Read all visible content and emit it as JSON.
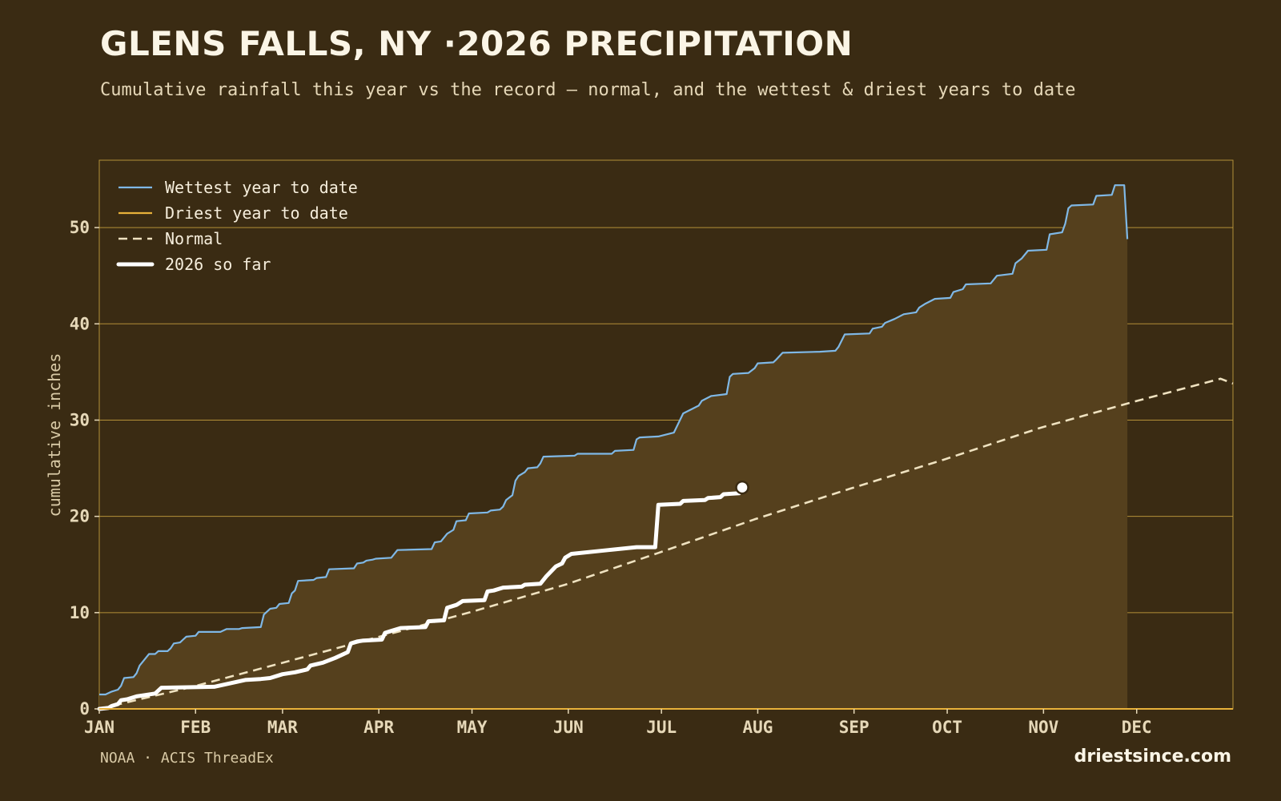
{
  "header": {
    "title": "GLENS FALLS, NY ·2026 PRECIPITATION",
    "subtitle": "Cumulative rainfall this year vs the record — normal, and the wettest & driest years to date"
  },
  "footer": {
    "source": "NOAA · ACIS ThreadEx",
    "brand": "driestsince.com"
  },
  "colors": {
    "background": "#3a2b13",
    "band_fill": "#55401d",
    "grid": "#c9a23f",
    "wettest": "#7fb8e6",
    "driest": "#e8b13a",
    "normal": "#efe2c0",
    "current": "#ffffff"
  },
  "chart_data": {
    "type": "line",
    "title": "GLENS FALLS, NY ·2026 PRECIPITATION",
    "subtitle": "Cumulative rainfall this year vs the record — normal, and the wettest & driest years to date",
    "xlabel": "",
    "ylabel": "cumulative inches",
    "x_unit": "day of year",
    "xlim": [
      1,
      366
    ],
    "ylim": [
      0,
      57
    ],
    "yticks": [
      0,
      10,
      20,
      30,
      40,
      50
    ],
    "month_ticks": [
      {
        "label": "JAN",
        "day": 1
      },
      {
        "label": "FEB",
        "day": 32
      },
      {
        "label": "MAR",
        "day": 60
      },
      {
        "label": "APR",
        "day": 91
      },
      {
        "label": "MAY",
        "day": 121
      },
      {
        "label": "JUN",
        "day": 152
      },
      {
        "label": "JUL",
        "day": 182
      },
      {
        "label": "AUG",
        "day": 213
      },
      {
        "label": "SEP",
        "day": 244
      },
      {
        "label": "OCT",
        "day": 274
      },
      {
        "label": "NOV",
        "day": 305
      },
      {
        "label": "DEC",
        "day": 335
      }
    ],
    "grid": true,
    "legend_position": "top-left",
    "series": [
      {
        "name": "Wettest year to date",
        "style": "thin",
        "points": [
          [
            1,
            1.5
          ],
          [
            3,
            1.5
          ],
          [
            5,
            1.8
          ],
          [
            7,
            2.0
          ],
          [
            8,
            2.4
          ],
          [
            9,
            3.2
          ],
          [
            12,
            3.3
          ],
          [
            13,
            3.7
          ],
          [
            14,
            4.5
          ],
          [
            16,
            5.3
          ],
          [
            17,
            5.7
          ],
          [
            19,
            5.7
          ],
          [
            20,
            6.0
          ],
          [
            23,
            6.0
          ],
          [
            24,
            6.3
          ],
          [
            25,
            6.8
          ],
          [
            27,
            6.9
          ],
          [
            28,
            7.2
          ],
          [
            29,
            7.5
          ],
          [
            32,
            7.6
          ],
          [
            33,
            8.0
          ],
          [
            40,
            8.0
          ],
          [
            42,
            8.3
          ],
          [
            46,
            8.3
          ],
          [
            47,
            8.4
          ],
          [
            53,
            8.5
          ],
          [
            54,
            9.8
          ],
          [
            56,
            10.4
          ],
          [
            58,
            10.5
          ],
          [
            59,
            10.9
          ],
          [
            62,
            11.0
          ],
          [
            63,
            12.0
          ],
          [
            64,
            12.3
          ],
          [
            65,
            13.3
          ],
          [
            70,
            13.4
          ],
          [
            71,
            13.6
          ],
          [
            74,
            13.7
          ],
          [
            75,
            14.5
          ],
          [
            83,
            14.6
          ],
          [
            84,
            15.1
          ],
          [
            86,
            15.2
          ],
          [
            87,
            15.4
          ],
          [
            89,
            15.5
          ],
          [
            90,
            15.6
          ],
          [
            95,
            15.7
          ],
          [
            97,
            16.5
          ],
          [
            108,
            16.6
          ],
          [
            109,
            17.3
          ],
          [
            111,
            17.4
          ],
          [
            113,
            18.2
          ],
          [
            115,
            18.6
          ],
          [
            116,
            19.5
          ],
          [
            119,
            19.6
          ],
          [
            120,
            20.3
          ],
          [
            126,
            20.4
          ],
          [
            127,
            20.6
          ],
          [
            130,
            20.7
          ],
          [
            131,
            21.0
          ],
          [
            132,
            21.7
          ],
          [
            134,
            22.2
          ],
          [
            135,
            23.7
          ],
          [
            136,
            24.2
          ],
          [
            138,
            24.6
          ],
          [
            139,
            25.0
          ],
          [
            142,
            25.1
          ],
          [
            143,
            25.5
          ],
          [
            144,
            26.2
          ],
          [
            154,
            26.3
          ],
          [
            155,
            26.5
          ],
          [
            166,
            26.5
          ],
          [
            167,
            26.8
          ],
          [
            173,
            26.9
          ],
          [
            174,
            28.0
          ],
          [
            175,
            28.2
          ],
          [
            181,
            28.3
          ],
          [
            186,
            28.7
          ],
          [
            189,
            30.7
          ],
          [
            194,
            31.5
          ],
          [
            195,
            32.0
          ],
          [
            198,
            32.5
          ],
          [
            203,
            32.7
          ],
          [
            204,
            34.5
          ],
          [
            205,
            34.8
          ],
          [
            210,
            34.9
          ],
          [
            212,
            35.4
          ],
          [
            213,
            35.9
          ],
          [
            218,
            36.0
          ],
          [
            219,
            36.3
          ],
          [
            221,
            37.0
          ],
          [
            233,
            37.1
          ],
          [
            238,
            37.2
          ],
          [
            239,
            37.6
          ],
          [
            241,
            38.9
          ],
          [
            249,
            39.0
          ],
          [
            250,
            39.5
          ],
          [
            253,
            39.7
          ],
          [
            254,
            40.1
          ],
          [
            257,
            40.5
          ],
          [
            260,
            41.0
          ],
          [
            264,
            41.2
          ],
          [
            265,
            41.7
          ],
          [
            267,
            42.1
          ],
          [
            270,
            42.6
          ],
          [
            275,
            42.7
          ],
          [
            276,
            43.3
          ],
          [
            279,
            43.6
          ],
          [
            280,
            44.1
          ],
          [
            288,
            44.2
          ],
          [
            290,
            45.0
          ],
          [
            295,
            45.2
          ],
          [
            296,
            46.3
          ],
          [
            298,
            46.8
          ],
          [
            300,
            47.6
          ],
          [
            306,
            47.7
          ],
          [
            307,
            49.3
          ],
          [
            311,
            49.5
          ],
          [
            312,
            50.4
          ],
          [
            313,
            52.0
          ],
          [
            314,
            52.3
          ],
          [
            321,
            52.4
          ],
          [
            322,
            53.3
          ],
          [
            327,
            53.4
          ],
          [
            328,
            54.4
          ],
          [
            331,
            54.4
          ],
          [
            332,
            48.8
          ]
        ]
      },
      {
        "name": "Driest year to date",
        "style": "thin",
        "points": [
          [
            1,
            0.0
          ],
          [
            366,
            0.0
          ]
        ]
      },
      {
        "name": "Normal",
        "style": "dashed",
        "points": [
          [
            1,
            0.0
          ],
          [
            31,
            2.3
          ],
          [
            59,
            4.7
          ],
          [
            90,
            7.4
          ],
          [
            120,
            10.0
          ],
          [
            151,
            12.9
          ],
          [
            181,
            16.2
          ],
          [
            212,
            19.7
          ],
          [
            243,
            22.9
          ],
          [
            273,
            25.9
          ],
          [
            304,
            29.2
          ],
          [
            334,
            31.9
          ],
          [
            362,
            34.3
          ],
          [
            366,
            33.8
          ]
        ]
      },
      {
        "name": "2026 so far",
        "style": "thick",
        "points": [
          [
            1,
            0.0
          ],
          [
            4,
            0.1
          ],
          [
            5,
            0.3
          ],
          [
            7,
            0.5
          ],
          [
            8,
            0.9
          ],
          [
            10,
            1.0
          ],
          [
            11,
            1.1
          ],
          [
            13,
            1.3
          ],
          [
            15,
            1.4
          ],
          [
            19,
            1.6
          ],
          [
            21,
            2.2
          ],
          [
            38,
            2.3
          ],
          [
            48,
            3.0
          ],
          [
            53,
            3.1
          ],
          [
            56,
            3.2
          ],
          [
            60,
            3.6
          ],
          [
            64,
            3.8
          ],
          [
            68,
            4.1
          ],
          [
            69,
            4.5
          ],
          [
            73,
            4.8
          ],
          [
            77,
            5.3
          ],
          [
            81,
            5.9
          ],
          [
            82,
            6.8
          ],
          [
            84,
            7.0
          ],
          [
            86,
            7.1
          ],
          [
            92,
            7.2
          ],
          [
            93,
            7.9
          ],
          [
            95,
            8.1
          ],
          [
            98,
            8.4
          ],
          [
            106,
            8.5
          ],
          [
            107,
            9.1
          ],
          [
            112,
            9.2
          ],
          [
            113,
            10.5
          ],
          [
            116,
            10.8
          ],
          [
            118,
            11.2
          ],
          [
            125,
            11.3
          ],
          [
            126,
            12.2
          ],
          [
            128,
            12.3
          ],
          [
            131,
            12.6
          ],
          [
            137,
            12.7
          ],
          [
            138,
            12.9
          ],
          [
            143,
            13.0
          ],
          [
            145,
            13.8
          ],
          [
            148,
            14.8
          ],
          [
            150,
            15.1
          ],
          [
            151,
            15.7
          ],
          [
            153,
            16.1
          ],
          [
            165,
            16.5
          ],
          [
            174,
            16.8
          ],
          [
            180,
            16.8
          ],
          [
            181,
            21.2
          ],
          [
            188,
            21.3
          ],
          [
            189,
            21.6
          ],
          [
            196,
            21.7
          ],
          [
            197,
            21.9
          ],
          [
            201,
            22.0
          ],
          [
            202,
            22.3
          ],
          [
            207,
            22.4
          ]
        ]
      }
    ],
    "current_marker": {
      "day": 208,
      "value": 23.0
    }
  }
}
